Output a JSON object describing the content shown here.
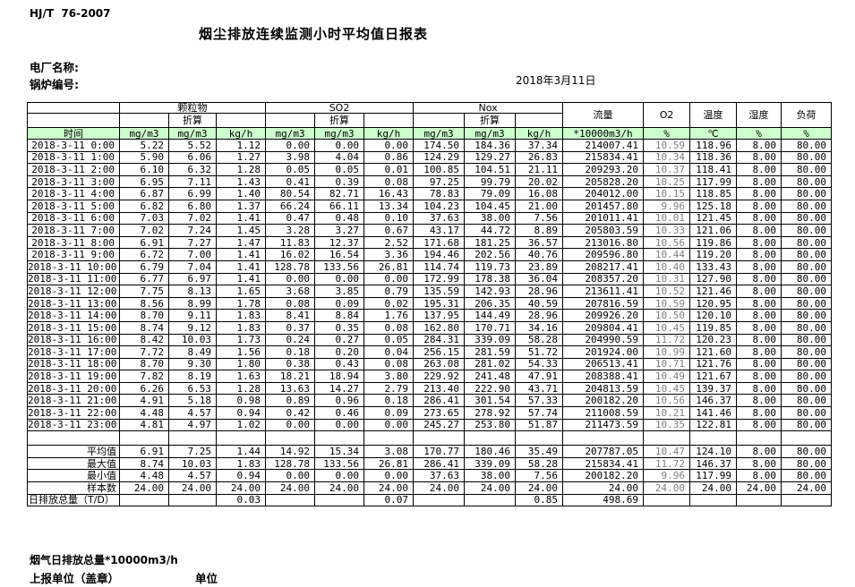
{
  "meta": {
    "standard": "HJ/T  76-2007",
    "title": "烟尘排放连续监测小时平均值日报表",
    "plant_label": "电厂名称:",
    "boiler_label": "锅炉编号:",
    "date": "2018年3月11日"
  },
  "colors": {
    "header_green": "#ccffcc",
    "o2_text_gray": "#808080"
  },
  "table": {
    "columns": {
      "time": "时间",
      "groups": [
        "颗粒物",
        "SO2",
        "Nox"
      ],
      "converted": "折算",
      "singles": [
        "流量",
        "O2",
        "温度",
        "湿度",
        "负荷"
      ],
      "units": [
        "mg/m3",
        "mg/m3",
        "kg/h",
        "mg/m3",
        "mg/m3",
        "kg/h",
        "mg/m3",
        "mg/m3",
        "kg/h",
        "*10000m3/h",
        "%",
        "℃",
        "%",
        "%"
      ]
    },
    "rows": [
      {
        "time": "2018-3-11 0:00",
        "values": [
          "5.22",
          "5.52",
          "1.12",
          "0.00",
          "0.00",
          "0.00",
          "174.50",
          "184.36",
          "37.34",
          "214007.41",
          "10.59",
          "118.96",
          "8.00",
          "80.00"
        ]
      },
      {
        "time": "2018-3-11 1:00",
        "values": [
          "5.90",
          "6.06",
          "1.27",
          "3.98",
          "4.04",
          "0.86",
          "124.29",
          "129.27",
          "26.83",
          "215834.41",
          "10.34",
          "118.36",
          "8.00",
          "80.00"
        ]
      },
      {
        "time": "2018-3-11 2:00",
        "values": [
          "6.10",
          "6.32",
          "1.28",
          "0.05",
          "0.05",
          "0.01",
          "100.85",
          "104.51",
          "21.11",
          "209293.20",
          "10.37",
          "118.41",
          "8.00",
          "80.00"
        ]
      },
      {
        "time": "2018-3-11 3:00",
        "values": [
          "6.95",
          "7.11",
          "1.43",
          "0.41",
          "0.39",
          "0.08",
          "97.25",
          "99.79",
          "20.02",
          "205828.20",
          "10.25",
          "117.99",
          "8.00",
          "80.00"
        ]
      },
      {
        "time": "2018-3-11 4:00",
        "values": [
          "6.87",
          "6.99",
          "1.40",
          "80.54",
          "82.71",
          "16.43",
          "78.83",
          "79.09",
          "16.08",
          "204012.00",
          "10.15",
          "118.85",
          "8.00",
          "80.00"
        ]
      },
      {
        "time": "2018-3-11 5:00",
        "values": [
          "6.82",
          "6.80",
          "1.37",
          "66.24",
          "66.11",
          "13.34",
          "104.23",
          "104.45",
          "21.00",
          "201457.80",
          "9.96",
          "125.18",
          "8.00",
          "80.00"
        ]
      },
      {
        "time": "2018-3-11 6:00",
        "values": [
          "7.03",
          "7.02",
          "1.41",
          "0.47",
          "0.48",
          "0.10",
          "37.63",
          "38.00",
          "7.56",
          "201011.41",
          "10.01",
          "121.45",
          "8.00",
          "80.00"
        ]
      },
      {
        "time": "2018-3-11 7:00",
        "values": [
          "7.02",
          "7.24",
          "1.45",
          "3.28",
          "3.27",
          "0.67",
          "43.17",
          "44.72",
          "8.89",
          "205803.59",
          "10.33",
          "121.06",
          "8.00",
          "80.00"
        ]
      },
      {
        "time": "2018-3-11 8:00",
        "values": [
          "6.91",
          "7.27",
          "1.47",
          "11.83",
          "12.37",
          "2.52",
          "171.68",
          "181.25",
          "36.57",
          "213016.80",
          "10.56",
          "119.86",
          "8.00",
          "80.00"
        ]
      },
      {
        "time": "2018-3-11 9:00",
        "values": [
          "6.72",
          "7.00",
          "1.41",
          "16.02",
          "16.54",
          "3.36",
          "194.46",
          "202.56",
          "40.76",
          "209596.80",
          "10.44",
          "119.20",
          "8.00",
          "80.00"
        ]
      },
      {
        "time": "2018-3-11 10:00",
        "values": [
          "6.79",
          "7.04",
          "1.41",
          "128.78",
          "133.56",
          "26.81",
          "114.74",
          "119.73",
          "23.89",
          "208217.41",
          "10.40",
          "133.43",
          "8.00",
          "80.00"
        ]
      },
      {
        "time": "2018-3-11 11:00",
        "values": [
          "6.77",
          "6.97",
          "1.41",
          "0.00",
          "0.00",
          "0.00",
          "172.99",
          "178.38",
          "36.04",
          "208357.20",
          "10.31",
          "127.90",
          "8.00",
          "80.00"
        ]
      },
      {
        "time": "2018-3-11 12:00",
        "values": [
          "7.75",
          "8.13",
          "1.65",
          "3.68",
          "3.85",
          "0.79",
          "135.59",
          "142.93",
          "28.96",
          "213611.41",
          "10.52",
          "121.46",
          "8.00",
          "80.00"
        ]
      },
      {
        "time": "2018-3-11 13:00",
        "values": [
          "8.56",
          "8.99",
          "1.78",
          "0.08",
          "0.09",
          "0.02",
          "195.31",
          "206.35",
          "40.59",
          "207816.59",
          "10.59",
          "120.95",
          "8.00",
          "80.00"
        ]
      },
      {
        "time": "2018-3-11 14:00",
        "values": [
          "8.70",
          "9.11",
          "1.83",
          "8.41",
          "8.84",
          "1.76",
          "137.95",
          "144.49",
          "28.96",
          "209926.20",
          "10.50",
          "120.10",
          "8.00",
          "80.00"
        ]
      },
      {
        "time": "2018-3-11 15:00",
        "values": [
          "8.74",
          "9.12",
          "1.83",
          "0.37",
          "0.35",
          "0.08",
          "162.80",
          "170.71",
          "34.16",
          "209804.41",
          "10.45",
          "119.85",
          "8.00",
          "80.00"
        ]
      },
      {
        "time": "2018-3-11 16:00",
        "values": [
          "8.42",
          "10.03",
          "1.73",
          "0.24",
          "0.27",
          "0.05",
          "284.31",
          "339.09",
          "58.28",
          "204990.59",
          "11.72",
          "120.23",
          "8.00",
          "80.00"
        ]
      },
      {
        "time": "2018-3-11 17:00",
        "values": [
          "7.72",
          "8.49",
          "1.56",
          "0.18",
          "0.20",
          "0.04",
          "256.15",
          "281.59",
          "51.72",
          "201924.00",
          "10.99",
          "121.60",
          "8.00",
          "80.00"
        ]
      },
      {
        "time": "2018-3-11 18:00",
        "values": [
          "8.70",
          "9.30",
          "1.80",
          "0.38",
          "0.43",
          "0.08",
          "263.08",
          "281.02",
          "54.33",
          "206513.41",
          "10.71",
          "121.76",
          "8.00",
          "80.00"
        ]
      },
      {
        "time": "2018-3-11 19:00",
        "values": [
          "7.82",
          "8.19",
          "1.63",
          "18.21",
          "18.94",
          "3.80",
          "229.92",
          "241.48",
          "47.91",
          "208388.41",
          "10.49",
          "121.67",
          "8.00",
          "80.00"
        ]
      },
      {
        "time": "2018-3-11 20:00",
        "values": [
          "6.26",
          "6.53",
          "1.28",
          "13.63",
          "14.27",
          "2.79",
          "213.40",
          "222.90",
          "43.71",
          "204813.59",
          "10.45",
          "139.37",
          "8.00",
          "80.00"
        ]
      },
      {
        "time": "2018-3-11 21:00",
        "values": [
          "4.91",
          "5.18",
          "0.98",
          "0.89",
          "0.96",
          "0.18",
          "286.41",
          "301.54",
          "57.33",
          "200182.20",
          "10.56",
          "146.37",
          "8.00",
          "80.00"
        ]
      },
      {
        "time": "2018-3-11 22:00",
        "values": [
          "4.48",
          "4.57",
          "0.94",
          "0.42",
          "0.46",
          "0.09",
          "273.65",
          "278.92",
          "57.74",
          "211008.59",
          "10.21",
          "141.46",
          "8.00",
          "80.00"
        ]
      },
      {
        "time": "2018-3-11 23:00",
        "values": [
          "4.81",
          "4.97",
          "1.02",
          "0.00",
          "0.00",
          "0.00",
          "245.27",
          "253.80",
          "51.87",
          "211473.59",
          "10.35",
          "122.81",
          "8.00",
          "80.00"
        ]
      }
    ],
    "summary": [
      {
        "label": "平均值",
        "values": [
          "6.91",
          "7.25",
          "1.44",
          "14.92",
          "15.34",
          "3.08",
          "170.77",
          "180.46",
          "35.49",
          "207787.05",
          "10.47",
          "124.10",
          "8.00",
          "80.00"
        ]
      },
      {
        "label": "最大值",
        "values": [
          "8.74",
          "10.03",
          "1.83",
          "128.78",
          "133.56",
          "26.81",
          "286.41",
          "339.09",
          "58.28",
          "215834.41",
          "11.72",
          "146.37",
          "8.00",
          "80.00"
        ]
      },
      {
        "label": "最小值",
        "values": [
          "4.48",
          "4.57",
          "0.94",
          "0.00",
          "0.00",
          "0.00",
          "37.63",
          "38.00",
          "7.56",
          "200182.20",
          "9.96",
          "117.99",
          "8.00",
          "80.00"
        ]
      },
      {
        "label": "样本数",
        "values": [
          "24.00",
          "24.00",
          "24.00",
          "24.00",
          "24.00",
          "24.00",
          "24.00",
          "24.00",
          "24.00",
          "24.00",
          "24.00",
          "24.00",
          "24.00",
          "24.00"
        ]
      },
      {
        "label": "日排放总量（T/D）",
        "values": [
          "",
          "",
          "0.03",
          "",
          "",
          "0.07",
          "",
          "",
          "0.85",
          "498.69",
          "",
          "",
          "",
          ""
        ]
      }
    ]
  },
  "footer": {
    "flow_note": "烟气日排放总量*10000m3/h",
    "report_unit_label": "上报单位（盖章）",
    "unit_label": "单位"
  }
}
